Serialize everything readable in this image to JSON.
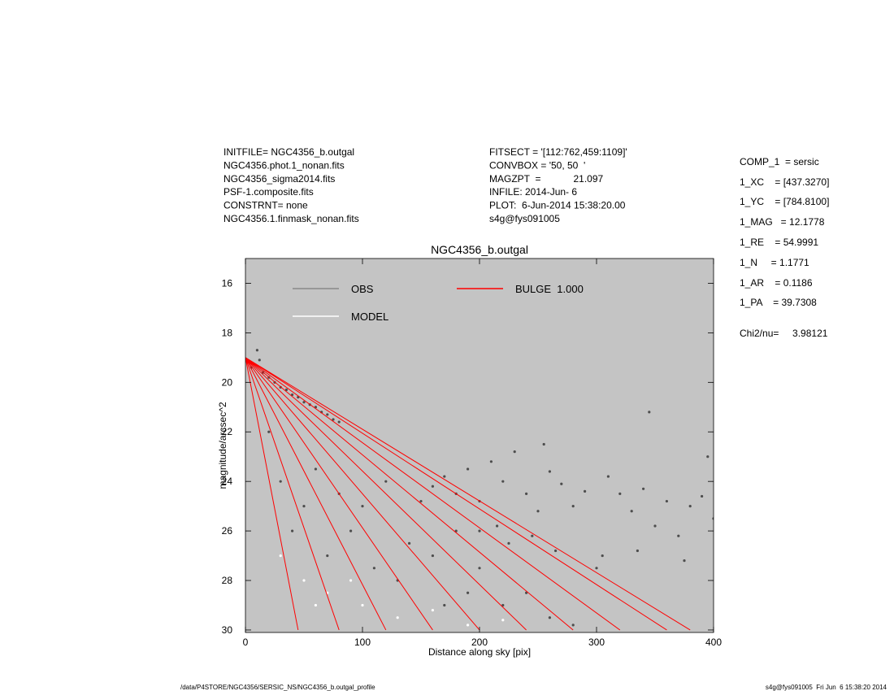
{
  "header": {
    "left": [
      "INITFILE= NGC4356_b.outgal",
      "NGC4356.phot.1_nonan.fits",
      "NGC4356_sigma2014.fits",
      "PSF-1.composite.fits",
      "CONSTRNT= none",
      "NGC4356.1.finmask_nonan.fits"
    ],
    "middle": [
      "FITSECT = '[112:762,459:1109]'",
      "CONVBOX = '50, 50  '",
      "MAGZPT  =            21.097",
      "INFILE: 2014-Jun- 6",
      "PLOT:  6-Jun-2014 15:38:20.00",
      "s4g@fys091005"
    ],
    "right": [
      "COMP_1  = sersic",
      "1_XC    = [437.3270]",
      "1_YC    = [784.8100]",
      "1_MAG   = 12.1778",
      "1_RE    = 54.9991",
      "1_N     = 1.1771",
      "1_AR    = 0.1186",
      "1_PA    = 39.7308",
      "Chi2/nu=     3.98121"
    ]
  },
  "footer": {
    "left": "/data/P4STORE/NGC4356/SERSIC_NS/NGC4356_b.outgal_profile",
    "right": "s4g@fys091005  Fri Jun  6 15:38:20 2014"
  },
  "chart_data": {
    "type": "scatter",
    "title": "NGC4356_b.outgal",
    "x_label": "Distance along sky [pix]",
    "y_label": "magnitude/arcsec^2",
    "xlim": [
      0,
      400
    ],
    "ylim": [
      30.1,
      15
    ],
    "xticks": [
      0,
      100,
      200,
      300,
      400
    ],
    "yticks": [
      16,
      18,
      20,
      22,
      24,
      26,
      28,
      30
    ],
    "background": "#c4c4c4",
    "series": [
      {
        "name": "OBS",
        "color": "#4d4d4d",
        "style": "points",
        "x": [
          5,
          10,
          12,
          15,
          20,
          25,
          30,
          35,
          40,
          45,
          50,
          55,
          60,
          65,
          70,
          75,
          80,
          20,
          30,
          40,
          50,
          60,
          70,
          80,
          90,
          100,
          110,
          120,
          130,
          140,
          150,
          160,
          170,
          180,
          190,
          200,
          220,
          240,
          260,
          280,
          160,
          170,
          180,
          190,
          200,
          210,
          220,
          230,
          240,
          250,
          260,
          270,
          280,
          290,
          200,
          215,
          225,
          245,
          265,
          255,
          300,
          305,
          320,
          330,
          340,
          350,
          360,
          370,
          380,
          390,
          400,
          345,
          335,
          375,
          395,
          310
        ],
        "values": [
          19.4,
          18.7,
          19.1,
          19.6,
          19.8,
          20.0,
          20.2,
          20.3,
          20.5,
          20.6,
          20.8,
          20.9,
          21.0,
          21.2,
          21.3,
          21.5,
          21.6,
          22,
          24,
          26,
          25,
          23.5,
          27,
          24.5,
          26,
          25,
          27.5,
          24,
          28,
          26.5,
          24.8,
          27,
          29,
          26,
          28.5,
          27.5,
          29,
          28.5,
          29.5,
          29.8,
          24.2,
          23.8,
          24.5,
          23.5,
          24.8,
          23.2,
          24,
          22.8,
          24.5,
          25.2,
          23.6,
          24.1,
          25,
          24.4,
          26,
          25.8,
          26.5,
          26.2,
          26.8,
          22.5,
          27.5,
          27,
          24.5,
          25.2,
          24.3,
          25.8,
          24.8,
          26.2,
          25,
          24.6,
          25.5,
          21.2,
          26.8,
          27.2,
          23,
          23.8
        ]
      },
      {
        "name": "MODEL",
        "color": "#ffffff",
        "style": "points",
        "x": [
          30,
          50,
          70,
          100,
          130,
          160,
          190,
          220,
          60,
          90
        ],
        "values": [
          27,
          28,
          28.5,
          29,
          29.5,
          29.2,
          29.8,
          29.6,
          29,
          28
        ]
      },
      {
        "name": "BULGE  1.000",
        "color": "#ff0000",
        "style": "line",
        "x": [
          0,
          45,
          0,
          80,
          0,
          120,
          0,
          160,
          0,
          200,
          0,
          240,
          0,
          280,
          0,
          320,
          0,
          360,
          0,
          380
        ],
        "values": [
          19,
          30,
          19,
          30,
          19,
          30,
          19,
          30,
          19,
          30,
          19,
          30,
          19,
          30,
          19,
          30,
          19,
          30,
          19,
          30
        ]
      }
    ]
  }
}
